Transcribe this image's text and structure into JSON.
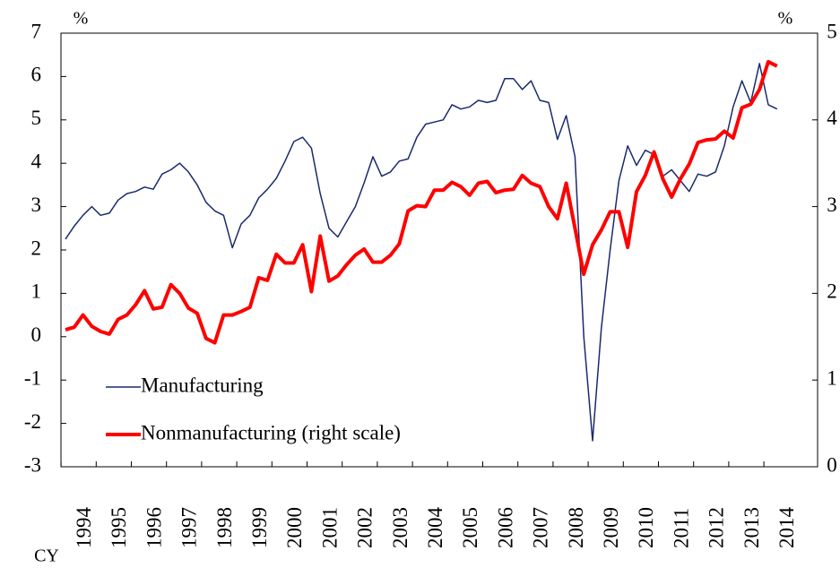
{
  "chart_data": {
    "type": "line",
    "categories": [
      "1994",
      null,
      null,
      null,
      "1995",
      null,
      null,
      null,
      "1996",
      null,
      null,
      null,
      "1997",
      null,
      null,
      null,
      "1998",
      null,
      null,
      null,
      "1999",
      null,
      null,
      null,
      "2000",
      null,
      null,
      null,
      "2001",
      null,
      null,
      null,
      "2002",
      null,
      null,
      null,
      "2003",
      null,
      null,
      null,
      "2004",
      null,
      null,
      null,
      "2005",
      null,
      null,
      null,
      "2006",
      null,
      null,
      null,
      "2007",
      null,
      null,
      null,
      "2008",
      null,
      null,
      null,
      "2009",
      null,
      null,
      null,
      "2010",
      null,
      null,
      null,
      "2011",
      null,
      null,
      null,
      "2012",
      null,
      null,
      null,
      "2013",
      null,
      null,
      null,
      "2014",
      null
    ],
    "x_label": "CY",
    "y_unit": "%",
    "y2_unit": "%",
    "ylim": [
      -3,
      7
    ],
    "yticks": [
      -3,
      -2,
      -1,
      0,
      1,
      2,
      3,
      4,
      5,
      6,
      7
    ],
    "y2lim": [
      0,
      5
    ],
    "y2ticks": [
      0,
      1,
      2,
      3,
      4,
      5
    ],
    "legend": "lower left",
    "series": [
      {
        "name": "Manufacturing",
        "color": "#1a2a6c",
        "width": 1.5,
        "values": [
          2.25,
          2.55,
          2.8,
          3.0,
          2.8,
          2.85,
          3.15,
          3.3,
          3.35,
          3.45,
          3.4,
          3.75,
          3.85,
          4.0,
          3.8,
          3.5,
          3.1,
          2.9,
          2.8,
          2.05,
          2.6,
          2.8,
          3.2,
          3.4,
          3.65,
          4.05,
          4.5,
          4.6,
          4.35,
          3.3,
          2.5,
          2.3,
          2.65,
          3.0,
          3.55,
          4.15,
          3.7,
          3.8,
          4.05,
          4.1,
          4.6,
          4.9,
          4.95,
          5.0,
          5.35,
          5.25,
          5.3,
          5.45,
          5.4,
          5.45,
          5.95,
          5.95,
          5.7,
          5.9,
          5.45,
          5.4,
          4.55,
          5.1,
          4.15,
          0.0,
          -2.4,
          0.2,
          2.0,
          3.6,
          4.4,
          3.95,
          4.3,
          4.2,
          3.7,
          3.85,
          3.6,
          3.35,
          3.75,
          3.7,
          3.8,
          4.4,
          5.3,
          5.9,
          5.4,
          6.3,
          5.35,
          5.25
        ]
      },
      {
        "name": "Nonmanufacturing (right scale)",
        "color": "#ff0000",
        "width": 4,
        "axis": "y2",
        "values": [
          1.58,
          1.61,
          1.75,
          1.62,
          1.56,
          1.53,
          1.7,
          1.75,
          1.87,
          2.03,
          1.82,
          1.84,
          2.1,
          2.0,
          1.83,
          1.77,
          1.48,
          1.43,
          1.75,
          1.75,
          1.79,
          1.84,
          2.18,
          2.15,
          2.45,
          2.35,
          2.35,
          2.56,
          2.02,
          2.66,
          2.14,
          2.2,
          2.33,
          2.44,
          2.51,
          2.36,
          2.36,
          2.44,
          2.57,
          2.95,
          3.01,
          3.0,
          3.19,
          3.19,
          3.28,
          3.23,
          3.13,
          3.27,
          3.29,
          3.16,
          3.19,
          3.2,
          3.36,
          3.27,
          3.23,
          3.0,
          2.86,
          3.27,
          2.75,
          2.22,
          2.56,
          2.73,
          2.94,
          2.94,
          2.53,
          3.17,
          3.36,
          3.63,
          3.32,
          3.11,
          3.32,
          3.49,
          3.74,
          3.77,
          3.78,
          3.87,
          3.79,
          4.14,
          4.18,
          4.35,
          4.67,
          4.62
        ]
      }
    ]
  }
}
